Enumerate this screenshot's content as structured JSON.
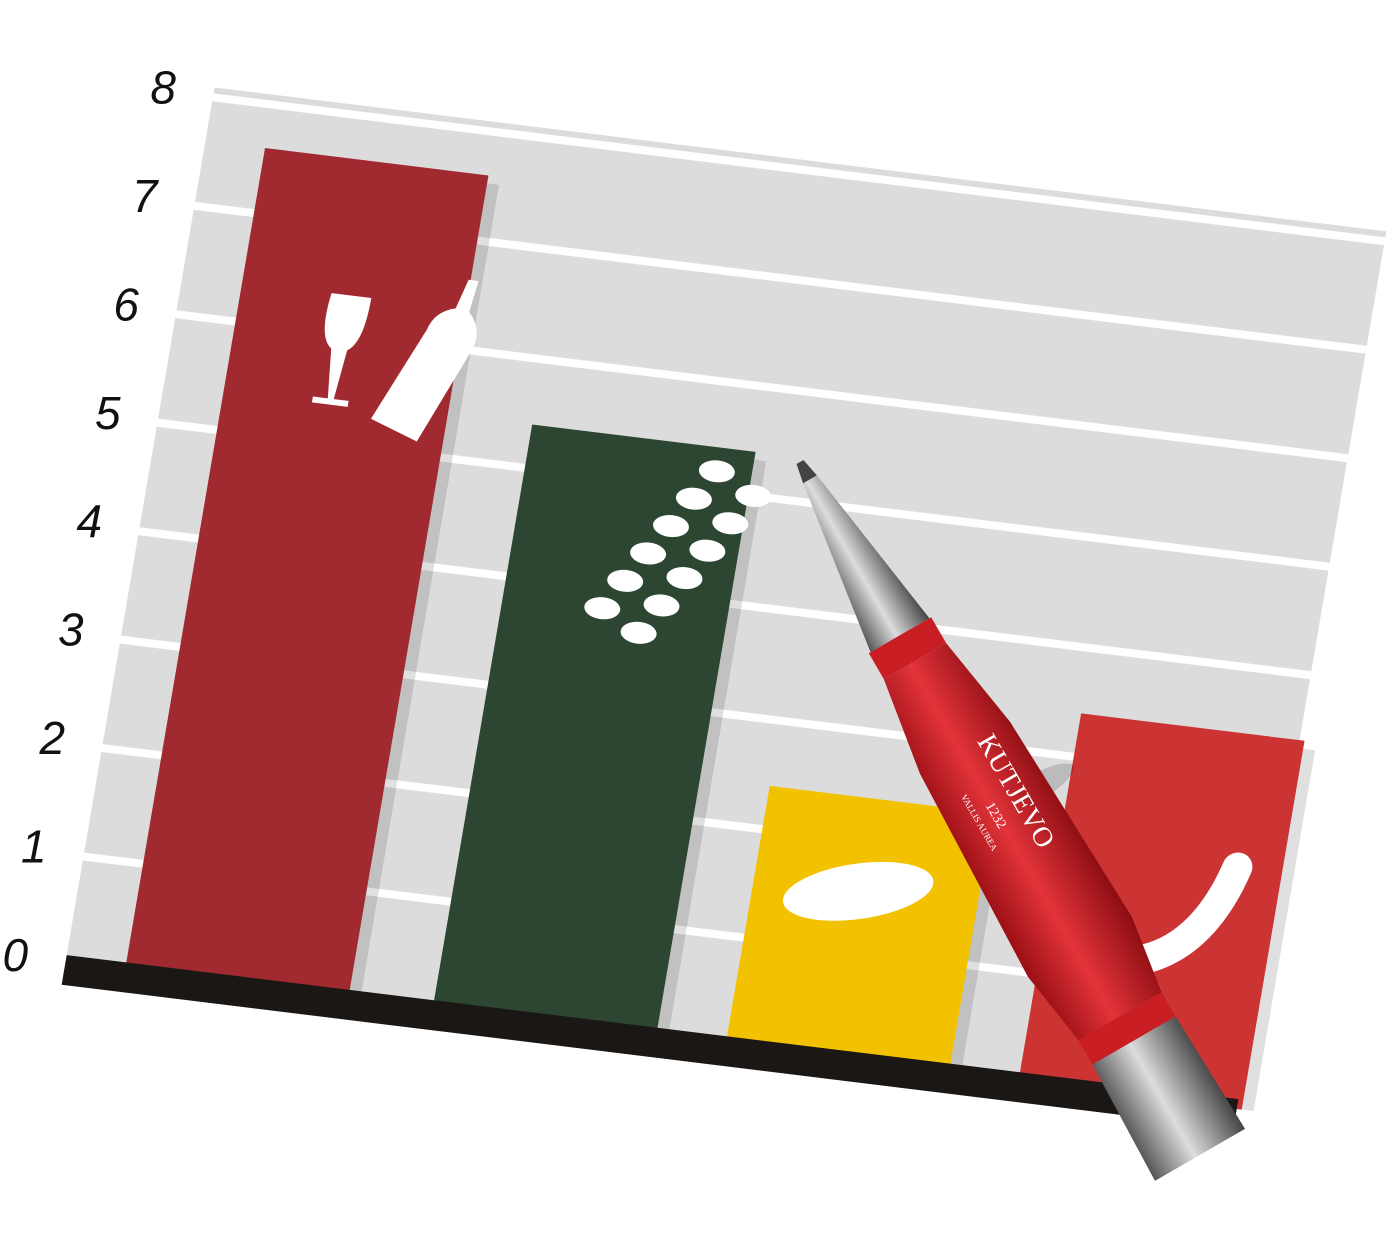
{
  "chart_data": {
    "type": "bar",
    "categories": [
      null,
      null,
      null,
      null
    ],
    "values": [
      7.6,
      5.4,
      2.4,
      3.4
    ],
    "colors": [
      "#a02a30",
      "#2c4632",
      "#f2c200",
      "#cc3333"
    ],
    "ylim": [
      0,
      8
    ],
    "yticks": [
      0,
      1,
      2,
      3,
      4,
      5,
      6,
      7,
      8
    ],
    "grid": true,
    "annotations": [
      "KUTJEVO",
      "1232",
      "VALLIS AUREA"
    ]
  }
}
